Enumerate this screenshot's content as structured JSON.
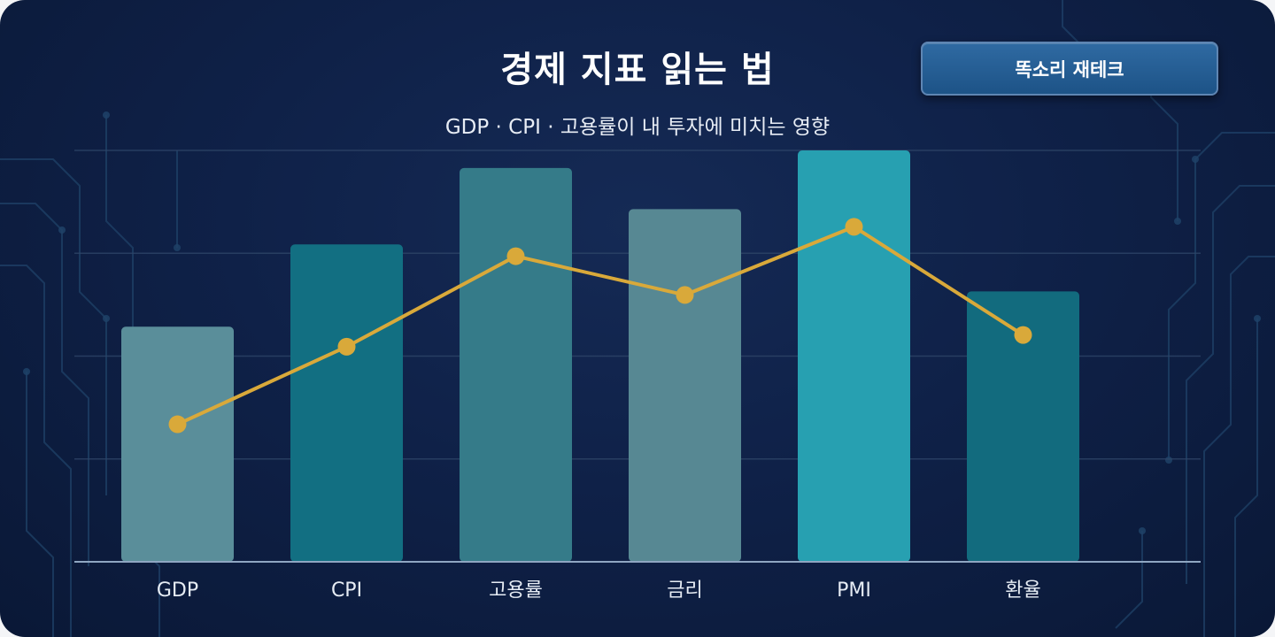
{
  "title": "경제 지표 읽는 법",
  "subtitle": "GDP · CPI · 고용률이 내 투자에 미치는 영향",
  "brand": "똑소리 재테크",
  "colors": {
    "background": "#0f2148",
    "line": "#d9a93a",
    "axis": "#8fa6c2",
    "grid": "#2e4568"
  },
  "chart_data": {
    "type": "bar",
    "categories": [
      "GDP",
      "CPI",
      "고용률",
      "금리",
      "PMI",
      "환율"
    ],
    "series": [
      {
        "kind": "bar",
        "values": [
          2.0,
          2.7,
          3.35,
          3.0,
          3.5,
          2.3
        ],
        "colors": [
          "#5a8e9a",
          "#126f82",
          "#357b89",
          "#578893",
          "#27a0b1",
          "#126b7e"
        ]
      },
      {
        "kind": "line",
        "values": [
          1.17,
          1.83,
          2.6,
          2.27,
          2.85,
          1.93
        ]
      }
    ],
    "ylim": [
      0,
      3.5
    ],
    "grid": true,
    "xlabel": "",
    "ylabel": ""
  }
}
